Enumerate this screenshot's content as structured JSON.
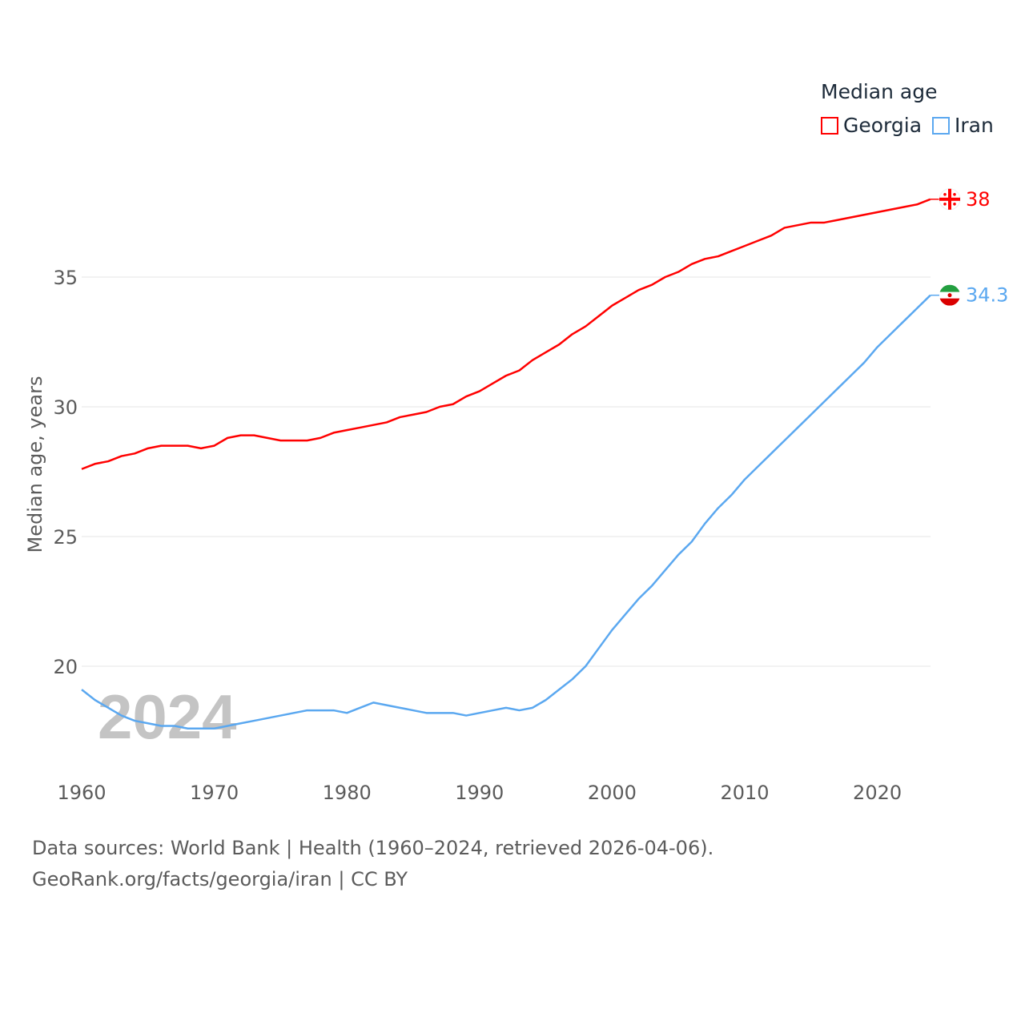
{
  "chart_data": {
    "type": "line",
    "title": "Median age",
    "xlabel": "",
    "ylabel": "Median age, years",
    "xlim": [
      1960,
      2024
    ],
    "ylim": [
      16.5,
      39
    ],
    "x_ticks": [
      "1960",
      "1970",
      "1980",
      "1990",
      "2000",
      "2010",
      "2020"
    ],
    "y_ticks": [
      "20",
      "25",
      "30",
      "35"
    ],
    "grid": true,
    "legend_position": "top-right",
    "year_watermark": "2024",
    "x": [
      1960,
      1961,
      1962,
      1963,
      1964,
      1965,
      1966,
      1967,
      1968,
      1969,
      1970,
      1971,
      1972,
      1973,
      1974,
      1975,
      1976,
      1977,
      1978,
      1979,
      1980,
      1981,
      1982,
      1983,
      1984,
      1985,
      1986,
      1987,
      1988,
      1989,
      1990,
      1991,
      1992,
      1993,
      1994,
      1995,
      1996,
      1997,
      1998,
      1999,
      2000,
      2001,
      2002,
      2003,
      2004,
      2005,
      2006,
      2007,
      2008,
      2009,
      2010,
      2011,
      2012,
      2013,
      2014,
      2015,
      2016,
      2017,
      2018,
      2019,
      2020,
      2021,
      2022,
      2023,
      2024
    ],
    "series": [
      {
        "name": "Georgia",
        "color": "#ff0000",
        "end_label": "38",
        "values": [
          27.6,
          27.8,
          27.9,
          28.1,
          28.2,
          28.4,
          28.5,
          28.5,
          28.5,
          28.4,
          28.5,
          28.8,
          28.9,
          28.9,
          28.8,
          28.7,
          28.7,
          28.7,
          28.8,
          29.0,
          29.1,
          29.2,
          29.3,
          29.4,
          29.6,
          29.7,
          29.8,
          30.0,
          30.1,
          30.4,
          30.6,
          30.9,
          31.2,
          31.4,
          31.8,
          32.1,
          32.4,
          32.8,
          33.1,
          33.5,
          33.9,
          34.2,
          34.5,
          34.7,
          35.0,
          35.2,
          35.5,
          35.7,
          35.8,
          36.0,
          36.2,
          36.4,
          36.6,
          36.9,
          37.0,
          37.1,
          37.1,
          37.2,
          37.3,
          37.4,
          37.5,
          37.6,
          37.7,
          37.8,
          38.0
        ]
      },
      {
        "name": "Iran",
        "color": "#5ba8f0",
        "end_label": "34.3",
        "values": [
          19.1,
          18.7,
          18.4,
          18.1,
          17.9,
          17.8,
          17.7,
          17.7,
          17.6,
          17.6,
          17.6,
          17.7,
          17.8,
          17.9,
          18.0,
          18.1,
          18.2,
          18.3,
          18.3,
          18.3,
          18.2,
          18.4,
          18.6,
          18.5,
          18.4,
          18.3,
          18.2,
          18.2,
          18.2,
          18.1,
          18.2,
          18.3,
          18.4,
          18.3,
          18.4,
          18.7,
          19.1,
          19.5,
          20.0,
          20.7,
          21.4,
          22.0,
          22.6,
          23.1,
          23.7,
          24.3,
          24.8,
          25.5,
          26.1,
          26.6,
          27.2,
          27.7,
          28.2,
          28.7,
          29.2,
          29.7,
          30.2,
          30.7,
          31.2,
          31.7,
          32.3,
          32.8,
          33.3,
          33.8,
          34.3
        ]
      }
    ]
  },
  "footer": {
    "line1": "Data sources: World Bank | Health (1960–2024, retrieved 2026-04-06).",
    "line2": "GeoRank.org/facts/georgia/iran | CC BY"
  }
}
